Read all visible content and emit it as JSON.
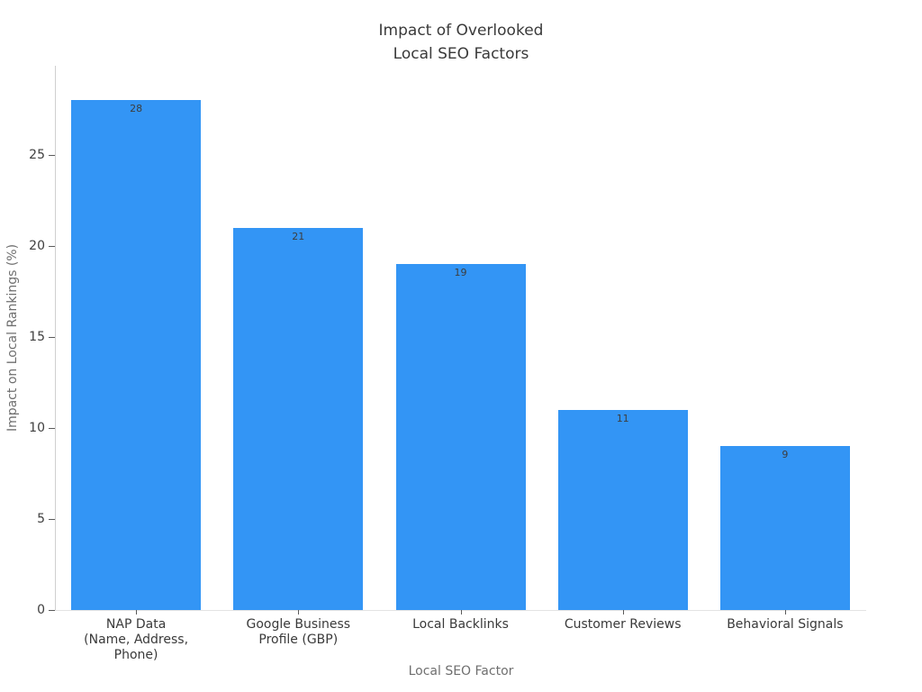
{
  "chart_data": {
    "type": "bar",
    "title": "Impact of Overlooked\nLocal SEO Factors",
    "xlabel": "Local SEO Factor",
    "ylabel": "Impact on Local Rankings (%)",
    "categories": [
      "NAP Data\n(Name, Address,\nPhone)",
      "Google Business\nProfile (GBP)",
      "Local Backlinks",
      "Customer Reviews",
      "Behavioral Signals"
    ],
    "values": [
      28,
      21,
      19,
      11,
      9
    ],
    "bar_value_labels": [
      "28",
      "21",
      "19",
      "11",
      "9"
    ],
    "yticks": [
      0,
      5,
      10,
      15,
      20,
      25
    ],
    "ylim": [
      0,
      29.9
    ],
    "bar_color": "#3395F5",
    "value_label_color": "#3d3d3d",
    "title_color": "#3a3a3a",
    "axis_label_color": "#6f6f6f",
    "tick_label_color": "#404040",
    "background_color": "#ffffff",
    "grid": false,
    "legend": "none"
  }
}
